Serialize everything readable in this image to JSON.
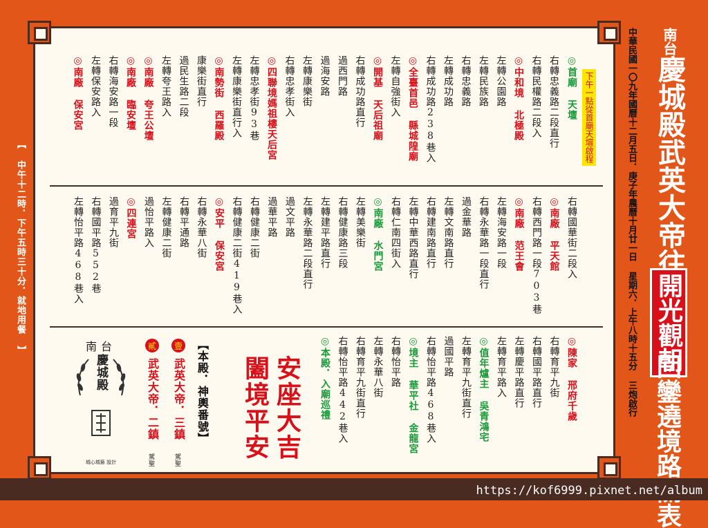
{
  "title": {
    "line1_small": "南台",
    "line1_big": "慶城殿武英大帝往",
    "line1_tail_small": "首廟",
    "line1_tail_big": "天壇",
    "boxed": "開光觀朝",
    "line3": "回鑾遶境路關表"
  },
  "date_line": "中華民國一〇九年國曆十二月五日．庚子年農曆十月廿一日 星期六．上午八時十五分 三炮啟行",
  "lunch_note": "【 中午十二時．下午五時三十分．就地用餐 】",
  "afternoon_note": "下午一點從首廟天壇啟程",
  "route_top": [
    {
      "t": "右轉忠義路二段直行",
      "c": "n"
    },
    {
      "t": "右轉民權路二段入",
      "c": "n"
    },
    {
      "t": "◎中和境 北極殿",
      "c": "r"
    },
    {
      "t": "左轉公園路",
      "c": "n"
    },
    {
      "t": "左轉民族路",
      "c": "n"
    },
    {
      "t": "右轉忠義路",
      "c": "n"
    },
    {
      "t": "左轉成功路",
      "c": "n"
    },
    {
      "t": "右轉成功路238巷入",
      "c": "n"
    },
    {
      "t": "◎全臺首邑 縣城隍廟",
      "c": "r"
    },
    {
      "t": "左轉自強街入",
      "c": "n"
    },
    {
      "t": "◎開基 天后祖廟",
      "c": "r"
    },
    {
      "t": "右轉成功路直行",
      "c": "n"
    },
    {
      "t": "過西門路",
      "c": "n"
    },
    {
      "t": "過海安路",
      "c": "n"
    },
    {
      "t": "左轉康樂街",
      "c": "n"
    },
    {
      "t": "右轉忠孝街入",
      "c": "n"
    },
    {
      "t": "◎四聯境媽祖樓天后宮",
      "c": "r"
    },
    {
      "t": "左轉忠孝街93巷",
      "c": "n"
    },
    {
      "t": "左轉康樂街直行入",
      "c": "n"
    },
    {
      "t": "◎南勢街 西羅殿",
      "c": "r"
    },
    {
      "t": "康樂街直行",
      "c": "n"
    },
    {
      "t": "過民生路二段",
      "c": "n"
    },
    {
      "t": "左轉夸王路入",
      "c": "n"
    },
    {
      "t": "◎南廠 夸王公壇",
      "c": "r"
    },
    {
      "t": "◎南廠 臨安壇",
      "c": "r"
    },
    {
      "t": "右轉海安路一段",
      "c": "n"
    },
    {
      "t": "左轉保安路入",
      "c": "n"
    },
    {
      "t": "◎南廠 保安宮",
      "c": "r"
    }
  ],
  "route_first": {
    "t": "◎首廟 天壇",
    "c": "g"
  },
  "route_mid": [
    {
      "t": "右轉國華街二段入",
      "c": "n"
    },
    {
      "t": "◎南廠 平天館",
      "c": "r"
    },
    {
      "t": "右轉西門路一段703巷",
      "c": "n"
    },
    {
      "t": "◎南廠 范王會",
      "c": "r"
    },
    {
      "t": "左轉海安路一段",
      "c": "n"
    },
    {
      "t": "右轉永華路一段直行",
      "c": "n"
    },
    {
      "t": "過金華路",
      "c": "n"
    },
    {
      "t": "左轉文南路直行",
      "c": "n"
    },
    {
      "t": "右轉建南路直行",
      "c": "n"
    },
    {
      "t": "左轉中華西路直行",
      "c": "n"
    },
    {
      "t": "右轉仁南四街入",
      "c": "n"
    },
    {
      "t": "◎南廠 水門宮",
      "c": "g"
    },
    {
      "t": "左轉美樂街",
      "c": "n"
    },
    {
      "t": "右轉健康路三段",
      "c": "n"
    },
    {
      "t": "左轉建平路直行",
      "c": "n"
    },
    {
      "t": "左轉永華路二段直行",
      "c": "n"
    },
    {
      "t": "過文平路",
      "c": "n"
    },
    {
      "t": "過華平路",
      "c": "n"
    },
    {
      "t": "右轉健康二街",
      "c": "n"
    },
    {
      "t": "右轉健康二街419巷入",
      "c": "n"
    },
    {
      "t": "◎安平 保安宮",
      "c": "r"
    },
    {
      "t": "右轉永華八街",
      "c": "n"
    },
    {
      "t": "右轉平通路",
      "c": "n"
    },
    {
      "t": "左轉健康二街",
      "c": "n"
    },
    {
      "t": "過怡平路入",
      "c": "n"
    },
    {
      "t": "◎四連宮",
      "c": "r"
    },
    {
      "t": "過育平九街",
      "c": "n"
    },
    {
      "t": "右轉國平路552巷",
      "c": "n"
    },
    {
      "t": "左轉怡平路468巷入",
      "c": "n"
    }
  ],
  "route_bottom": [
    {
      "t": "◎陳家 邢府千歲",
      "c": "r"
    },
    {
      "t": "右轉育平九街",
      "c": "n"
    },
    {
      "t": "右轉國平路直行",
      "c": "n"
    },
    {
      "t": "左轉慶平路直行",
      "c": "n"
    },
    {
      "t": "左轉育平路入",
      "c": "n"
    },
    {
      "t": "◎值年爐主 吳青鴻宅",
      "c": "g"
    },
    {
      "t": "左轉育平九街直行",
      "c": "n"
    },
    {
      "t": "過國平路",
      "c": "n"
    },
    {
      "t": "右轉怡平路468巷入",
      "c": "n"
    },
    {
      "t": "◎境主 華平社 金龍宮",
      "c": "g"
    },
    {
      "t": "右轉怡平路",
      "c": "n"
    },
    {
      "t": "左轉永華八街",
      "c": "n"
    },
    {
      "t": "右轉育平九街直行",
      "c": "n"
    },
    {
      "t": "右轉怡平路442巷入",
      "c": "n"
    },
    {
      "t": "◎本殿．入廟巡禮",
      "c": "g"
    }
  ],
  "blessing": [
    "安座大吉",
    "闔境平安"
  ],
  "deities": {
    "header": "【本殿．神輿番號】",
    "seat1_stamp": "壹",
    "seat1": "武英大帝．三鎮",
    "seat1_sub": "駕聖",
    "seat2_stamp": "貳",
    "seat2": "武英大帝．二鎮",
    "seat2_sub": "駕聖"
  },
  "logo": {
    "top": "南台",
    "name": "慶城殿",
    "sub": "城心城藝 設計"
  },
  "watermark": "https://kof6999.pixnet.net/album"
}
